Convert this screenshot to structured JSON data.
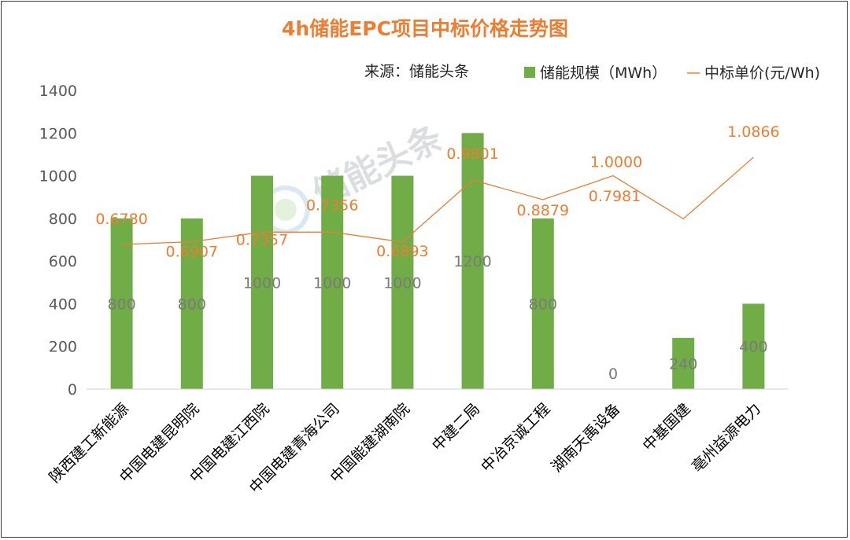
{
  "chart_data": {
    "type": "bar",
    "title": "4h储能EPC项目中标价格走势图",
    "source": "来源：储能头条",
    "watermark": "储能头条",
    "categories": [
      "陕西建工新能源",
      "中国电建昆明院",
      "中国电建江西院",
      "中国电建青海公司",
      "中国能建湖南院",
      "中建二局",
      "中冶京诚工程",
      "湖南天禹设备",
      "中基国建",
      "亳州益源电力"
    ],
    "series": [
      {
        "name": "储能规模（MWh）",
        "kind": "bar",
        "axis": "left",
        "color": "#70ad47",
        "values": [
          800,
          800,
          1000,
          1000,
          1000,
          1200,
          800,
          0,
          240,
          400
        ],
        "labels": [
          "800",
          "800",
          "1000",
          "1000",
          "1000",
          "1200",
          "800",
          "0",
          "240",
          "400"
        ]
      },
      {
        "name": "中标单价(元/Wh)",
        "kind": "line",
        "axis": "right-hidden",
        "color": "#ed7d31",
        "values": [
          0.678,
          0.6907,
          0.7357,
          0.7356,
          0.6893,
          0.9801,
          0.8879,
          1.0,
          0.7981,
          1.0866
        ],
        "labels": [
          "0.6780",
          "0.6907",
          "0.7357",
          "0.7356",
          "0.6893",
          "0.9801",
          "0.8879",
          "1.0000",
          "0.7981",
          "1.0866"
        ]
      }
    ],
    "y_left": {
      "min": 0,
      "max": 1400,
      "ticks": [
        "0",
        "200",
        "400",
        "600",
        "800",
        "1000",
        "1200",
        "1400"
      ]
    },
    "y_right_hidden": {
      "min": 0,
      "max": 1.4
    },
    "grid": false,
    "legend_position": "top-right",
    "colors": {
      "bar": "#70ad47",
      "line": "#ed7d31",
      "title": "#ed7d31",
      "border": "#3a3a3a"
    }
  }
}
